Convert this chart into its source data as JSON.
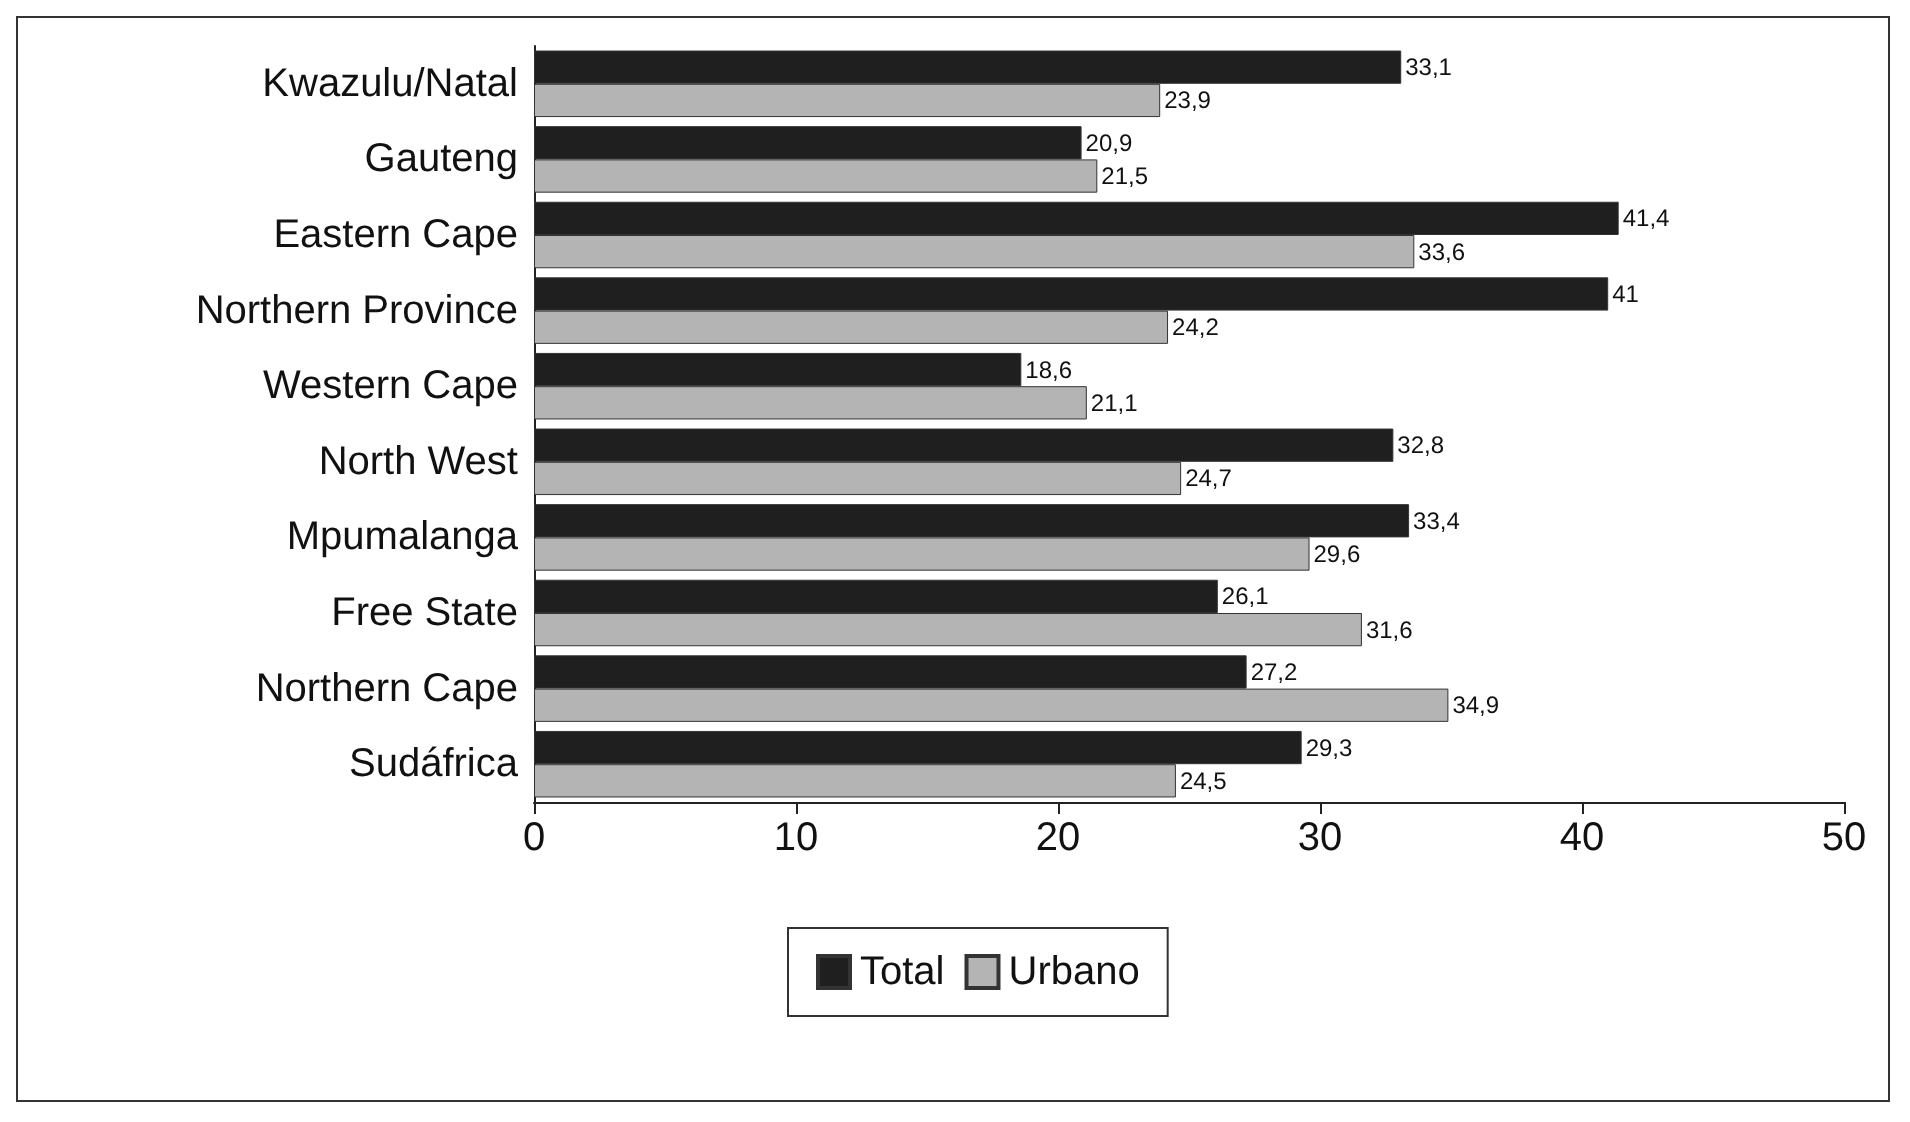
{
  "chart_data": {
    "type": "bar",
    "orientation": "horizontal",
    "categories": [
      "Kwazulu/Natal",
      "Gauteng",
      "Eastern Cape",
      "Northern Province",
      "Western Cape",
      "North West",
      "Mpumalanga",
      "Free State",
      "Northern Cape",
      "Sudáfrica"
    ],
    "series": [
      {
        "name": "Total",
        "color": "#1f1f1f",
        "values": [
          33.1,
          20.9,
          41.4,
          41,
          18.6,
          32.8,
          33.4,
          26.1,
          27.2,
          29.3
        ],
        "value_labels": [
          "33,1",
          "20,9",
          "41,4",
          "41",
          "18,6",
          "32,8",
          "33,4",
          "26,1",
          "27,2",
          "29,3"
        ]
      },
      {
        "name": "Urbano",
        "color": "#b4b4b4",
        "values": [
          23.9,
          21.5,
          33.6,
          24.2,
          21.1,
          24.7,
          29.6,
          31.6,
          34.9,
          24.5
        ],
        "value_labels": [
          "23,9",
          "21,5",
          "33,6",
          "24,2",
          "21,1",
          "24,7",
          "29,6",
          "31,6",
          "34,9",
          "24,5"
        ]
      }
    ],
    "xlim": [
      0,
      50
    ],
    "xticks": [
      0,
      10,
      20,
      30,
      40,
      50
    ],
    "grid": false,
    "legend": "bottom"
  }
}
